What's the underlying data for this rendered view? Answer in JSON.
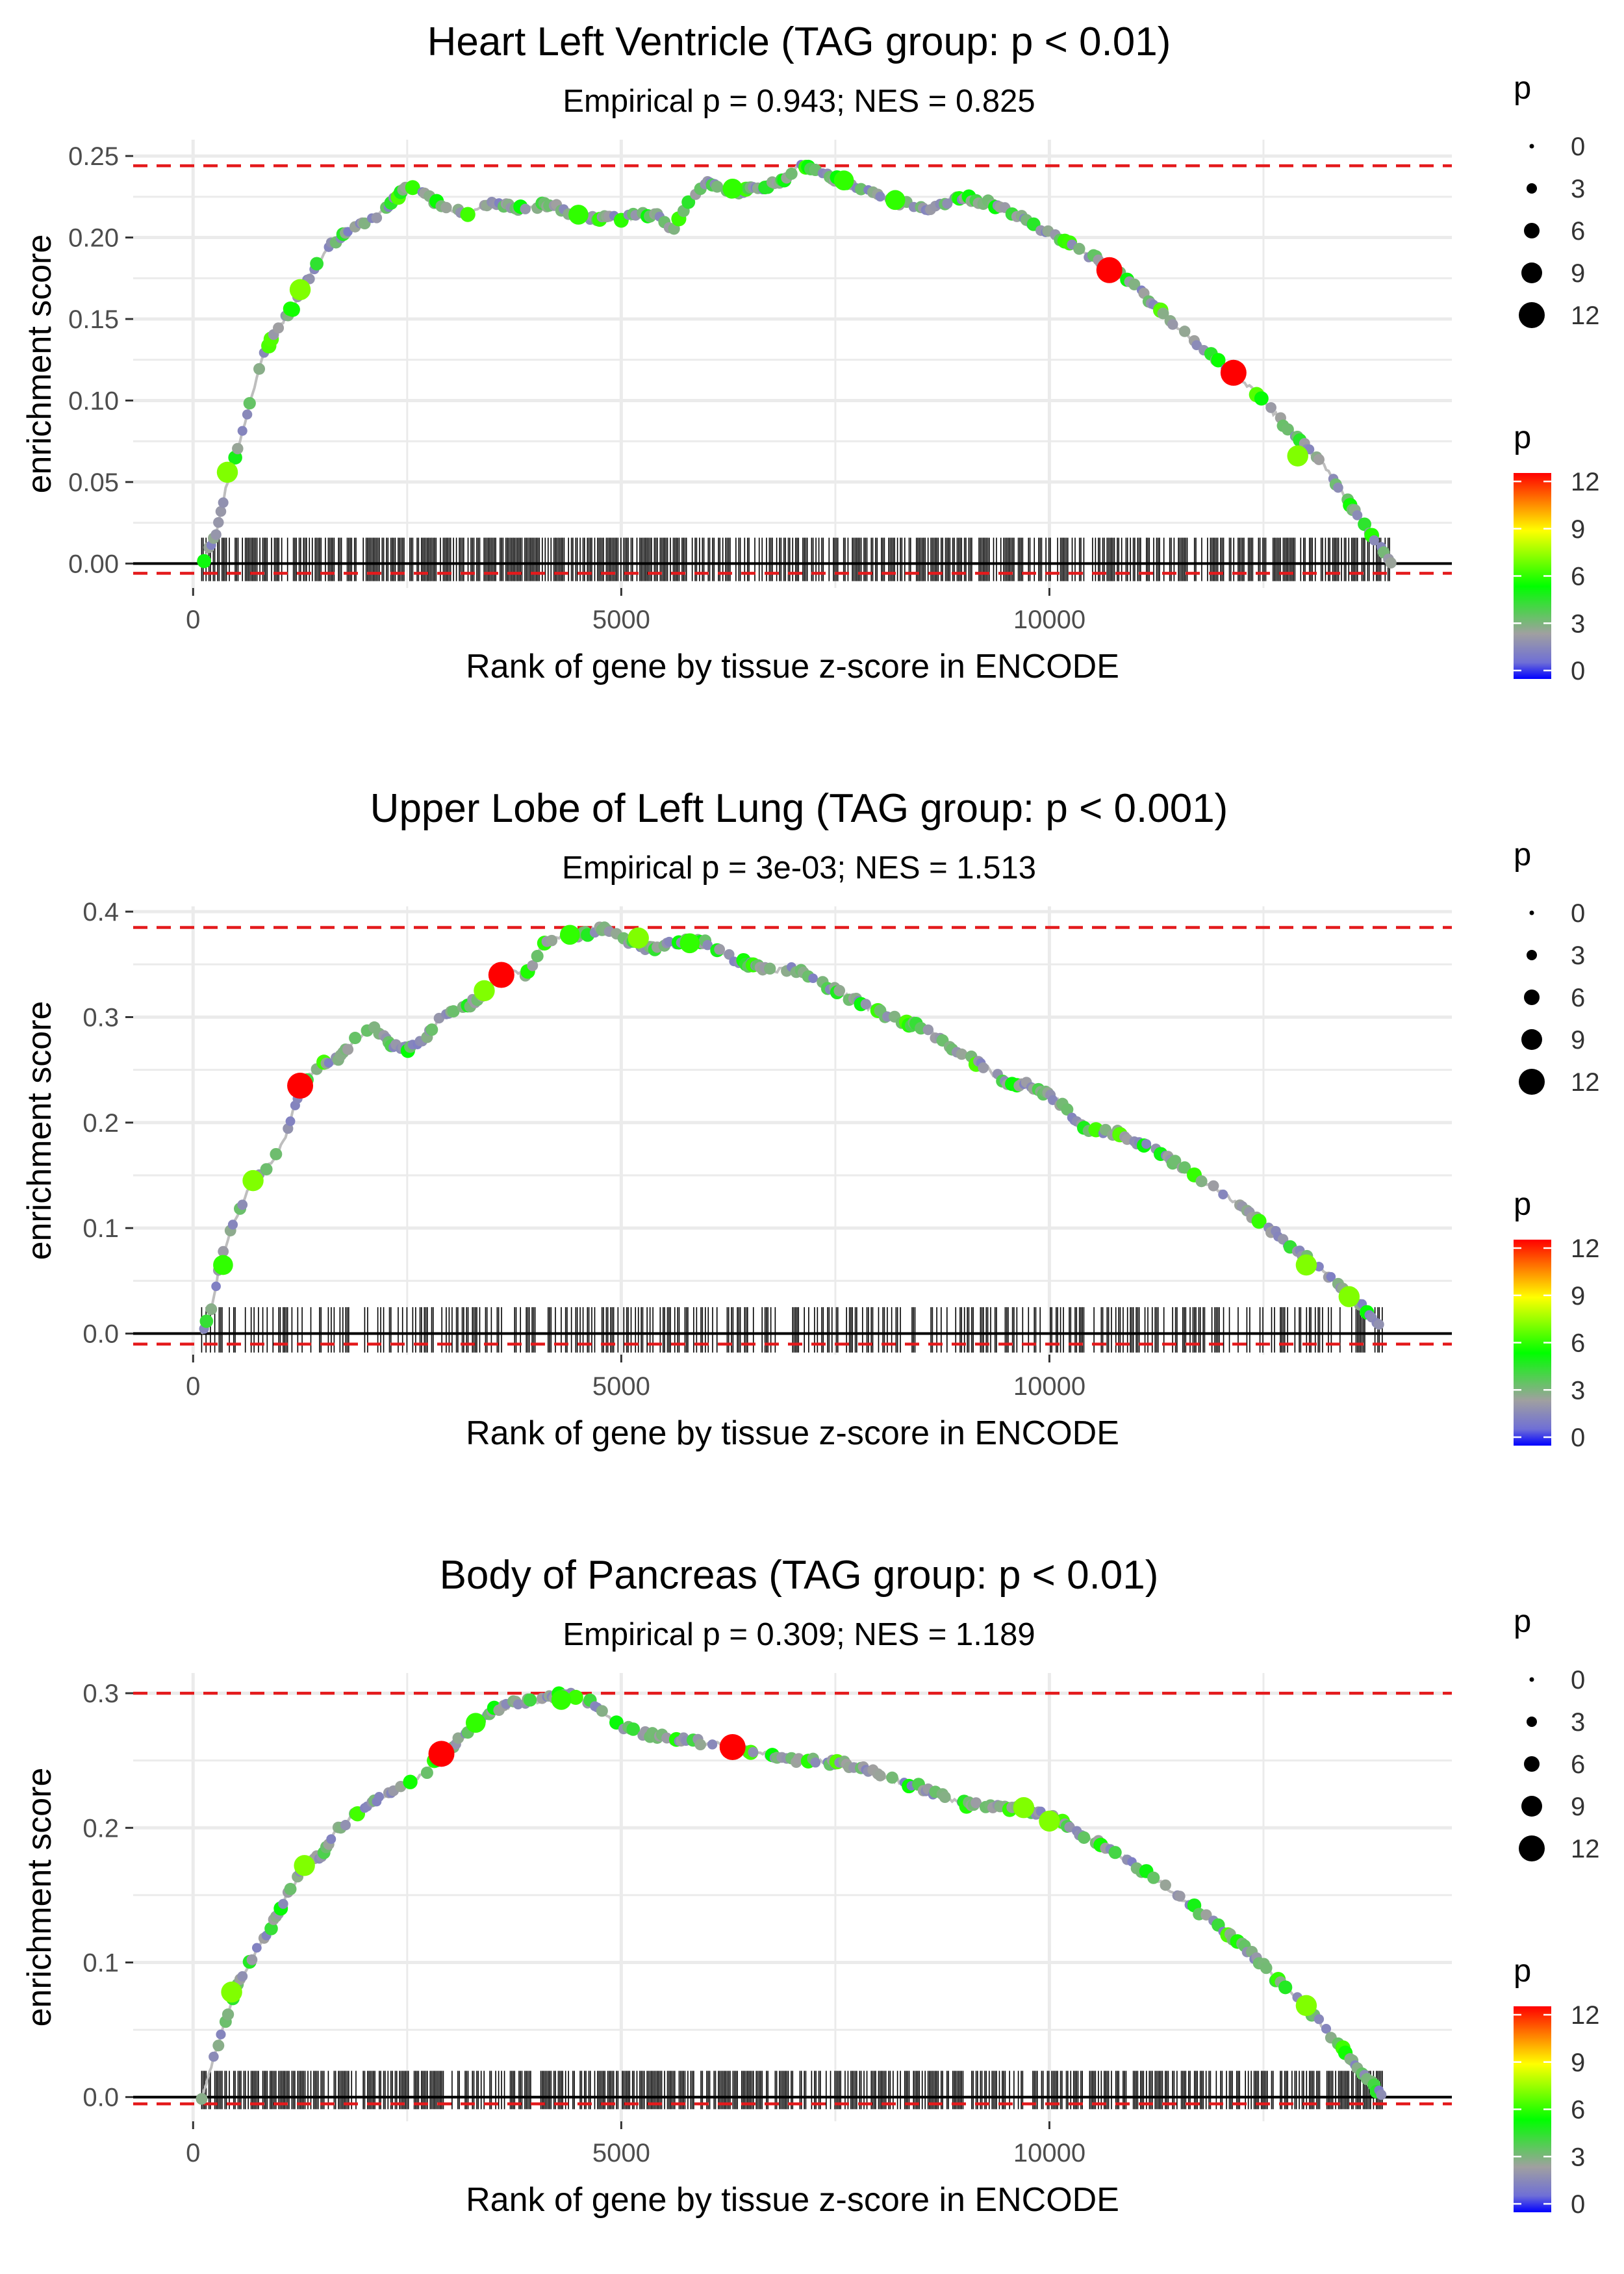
{
  "colors": {
    "line": "#bebebe",
    "hline": "#e41a1c",
    "axis_line": "#000000",
    "rug": "#000000",
    "grid": "#ebebeb",
    "scale": [
      "#0000ff",
      "#a0a0a0",
      "#00ff00",
      "#ffff00",
      "#ff0000"
    ]
  },
  "legend": {
    "size_title": "p",
    "size_labels": [
      "0",
      "3",
      "6",
      "9",
      "12"
    ],
    "color_title": "p",
    "color_labels": [
      "0",
      "3",
      "6",
      "9",
      "12"
    ]
  },
  "chart_data": [
    {
      "type": "line",
      "title": "Heart Left Ventricle (TAG group: p < 0.01)",
      "subtitle": "Empirical p = 0.943; NES = 0.825",
      "xlabel": "Rank of gene by tissue z-score in ENCODE",
      "ylabel": "enrichment score",
      "xlim": [
        -700,
        14700
      ],
      "ylim": [
        -0.015,
        0.26
      ],
      "xticks": [
        0,
        5000,
        10000
      ],
      "xtick_labels": [
        "0",
        "5000",
        "10000"
      ],
      "yticks": [
        0,
        0.05,
        0.1,
        0.15,
        0.2,
        0.25
      ],
      "ytick_labels": [
        "0.00",
        "0.05",
        "0.10",
        "0.15",
        "0.20",
        "0.25"
      ],
      "max_es": 0.244,
      "min_es": -0.006,
      "rug_range": [
        100,
        14000
      ],
      "rug_density": 0.62,
      "seed": 11,
      "curve": [
        [
          100,
          0
        ],
        [
          250,
          0.015
        ],
        [
          400,
          0.05
        ],
        [
          600,
          0.085
        ],
        [
          800,
          0.125
        ],
        [
          1000,
          0.145
        ],
        [
          1200,
          0.16
        ],
        [
          1400,
          0.18
        ],
        [
          1600,
          0.195
        ],
        [
          1800,
          0.205
        ],
        [
          2000,
          0.208
        ],
        [
          2200,
          0.215
        ],
        [
          2500,
          0.232
        ],
        [
          2700,
          0.228
        ],
        [
          2900,
          0.218
        ],
        [
          3200,
          0.215
        ],
        [
          3500,
          0.222
        ],
        [
          3800,
          0.218
        ],
        [
          4200,
          0.22
        ],
        [
          4500,
          0.212
        ],
        [
          5000,
          0.212
        ],
        [
          5400,
          0.215
        ],
        [
          5600,
          0.205
        ],
        [
          5800,
          0.222
        ],
        [
          6000,
          0.233
        ],
        [
          6300,
          0.228
        ],
        [
          6600,
          0.23
        ],
        [
          6900,
          0.235
        ],
        [
          7100,
          0.245
        ],
        [
          7400,
          0.238
        ],
        [
          7800,
          0.23
        ],
        [
          8200,
          0.222
        ],
        [
          8600,
          0.218
        ],
        [
          9000,
          0.225
        ],
        [
          9500,
          0.218
        ],
        [
          9800,
          0.208
        ],
        [
          10200,
          0.197
        ],
        [
          10500,
          0.188
        ],
        [
          10800,
          0.18
        ],
        [
          11200,
          0.16
        ],
        [
          11600,
          0.14
        ],
        [
          12000,
          0.122
        ],
        [
          12400,
          0.105
        ],
        [
          12800,
          0.082
        ],
        [
          13200,
          0.06
        ],
        [
          13600,
          0.03
        ],
        [
          14000,
          0.0
        ]
      ],
      "highlights": [
        {
          "x": 10700,
          "y": 0.18,
          "p": 12
        },
        {
          "x": 12150,
          "y": 0.117,
          "p": 12
        },
        {
          "x": 1250,
          "y": 0.168,
          "p": 7
        },
        {
          "x": 400,
          "y": 0.056,
          "p": 7
        },
        {
          "x": 12900,
          "y": 0.066,
          "p": 7
        },
        {
          "x": 7600,
          "y": 0.235,
          "p": 6
        },
        {
          "x": 4500,
          "y": 0.214,
          "p": 6
        },
        {
          "x": 6300,
          "y": 0.23,
          "p": 6
        },
        {
          "x": 8200,
          "y": 0.223,
          "p": 6
        }
      ]
    },
    {
      "type": "line",
      "title": "Upper Lobe of Left Lung (TAG group: p < 0.001)",
      "subtitle": "Empirical p = 3e-03; NES = 1.513",
      "xlabel": "Rank of gene by tissue z-score in ENCODE",
      "ylabel": "enrichment score",
      "xlim": [
        -700,
        14700
      ],
      "ylim": [
        -0.02,
        0.405
      ],
      "xticks": [
        0,
        5000,
        10000
      ],
      "xtick_labels": [
        "0",
        "5000",
        "10000"
      ],
      "yticks": [
        0,
        0.1,
        0.2,
        0.3,
        0.4
      ],
      "ytick_labels": [
        "0.0",
        "0.1",
        "0.2",
        "0.3",
        "0.4"
      ],
      "max_es": 0.385,
      "min_es": -0.01,
      "rug_range": [
        100,
        13900
      ],
      "rug_density": 0.4,
      "seed": 23,
      "curve": [
        [
          100,
          0
        ],
        [
          200,
          0.02
        ],
        [
          300,
          0.06
        ],
        [
          400,
          0.09
        ],
        [
          550,
          0.12
        ],
        [
          700,
          0.145
        ],
        [
          900,
          0.16
        ],
        [
          1050,
          0.18
        ],
        [
          1200,
          0.22
        ],
        [
          1350,
          0.245
        ],
        [
          1500,
          0.255
        ],
        [
          1700,
          0.26
        ],
        [
          1900,
          0.28
        ],
        [
          2100,
          0.29
        ],
        [
          2300,
          0.275
        ],
        [
          2500,
          0.27
        ],
        [
          2700,
          0.28
        ],
        [
          2900,
          0.3
        ],
        [
          3200,
          0.31
        ],
        [
          3500,
          0.33
        ],
        [
          3700,
          0.345
        ],
        [
          3900,
          0.34
        ],
        [
          4100,
          0.37
        ],
        [
          4300,
          0.375
        ],
        [
          4600,
          0.38
        ],
        [
          4800,
          0.385
        ],
        [
          5000,
          0.375
        ],
        [
          5300,
          0.365
        ],
        [
          5700,
          0.372
        ],
        [
          6000,
          0.37
        ],
        [
          6300,
          0.355
        ],
        [
          6700,
          0.345
        ],
        [
          7100,
          0.345
        ],
        [
          7500,
          0.325
        ],
        [
          8000,
          0.305
        ],
        [
          8500,
          0.29
        ],
        [
          8800,
          0.275
        ],
        [
          9200,
          0.255
        ],
        [
          9500,
          0.238
        ],
        [
          9800,
          0.235
        ],
        [
          10100,
          0.22
        ],
        [
          10400,
          0.195
        ],
        [
          10800,
          0.19
        ],
        [
          11200,
          0.175
        ],
        [
          11600,
          0.155
        ],
        [
          12000,
          0.135
        ],
        [
          12400,
          0.11
        ],
        [
          12800,
          0.085
        ],
        [
          13200,
          0.06
        ],
        [
          13600,
          0.03
        ],
        [
          13900,
          0.005
        ]
      ],
      "highlights": [
        {
          "x": 1250,
          "y": 0.235,
          "p": 12
        },
        {
          "x": 3600,
          "y": 0.34,
          "p": 12
        },
        {
          "x": 700,
          "y": 0.145,
          "p": 7
        },
        {
          "x": 350,
          "y": 0.065,
          "p": 6
        },
        {
          "x": 3400,
          "y": 0.325,
          "p": 7
        },
        {
          "x": 4400,
          "y": 0.378,
          "p": 6
        },
        {
          "x": 5200,
          "y": 0.375,
          "p": 7
        },
        {
          "x": 5800,
          "y": 0.37,
          "p": 6
        },
        {
          "x": 13000,
          "y": 0.065,
          "p": 7
        },
        {
          "x": 13500,
          "y": 0.035,
          "p": 7
        }
      ]
    },
    {
      "type": "line",
      "title": "Body of Pancreas (TAG group: p < 0.01)",
      "subtitle": "Empirical p = 0.309; NES = 1.189",
      "xlabel": "Rank of gene by tissue z-score in ENCODE",
      "ylabel": "enrichment score",
      "xlim": [
        -700,
        14700
      ],
      "ylim": [
        -0.018,
        0.315
      ],
      "xticks": [
        0,
        5000,
        10000
      ],
      "xtick_labels": [
        "0",
        "5000",
        "10000"
      ],
      "yticks": [
        0,
        0.1,
        0.2,
        0.3
      ],
      "ytick_labels": [
        "0.0",
        "0.1",
        "0.2",
        "0.3"
      ],
      "max_es": 0.3,
      "min_es": -0.005,
      "rug_range": [
        100,
        13900
      ],
      "rug_density": 0.62,
      "seed": 37,
      "curve": [
        [
          100,
          0
        ],
        [
          200,
          0.02
        ],
        [
          350,
          0.05
        ],
        [
          500,
          0.08
        ],
        [
          700,
          0.105
        ],
        [
          900,
          0.125
        ],
        [
          1100,
          0.15
        ],
        [
          1300,
          0.172
        ],
        [
          1500,
          0.18
        ],
        [
          1700,
          0.2
        ],
        [
          1900,
          0.21
        ],
        [
          2100,
          0.22
        ],
        [
          2300,
          0.225
        ],
        [
          2500,
          0.235
        ],
        [
          2700,
          0.24
        ],
        [
          2900,
          0.255
        ],
        [
          3100,
          0.265
        ],
        [
          3300,
          0.278
        ],
        [
          3500,
          0.288
        ],
        [
          3800,
          0.293
        ],
        [
          4100,
          0.295
        ],
        [
          4400,
          0.3
        ],
        [
          4700,
          0.292
        ],
        [
          5000,
          0.275
        ],
        [
          5400,
          0.268
        ],
        [
          5800,
          0.265
        ],
        [
          6300,
          0.26
        ],
        [
          6700,
          0.255
        ],
        [
          7100,
          0.25
        ],
        [
          7600,
          0.248
        ],
        [
          8000,
          0.24
        ],
        [
          8500,
          0.23
        ],
        [
          9000,
          0.218
        ],
        [
          9500,
          0.215
        ],
        [
          10000,
          0.21
        ],
        [
          10300,
          0.198
        ],
        [
          10700,
          0.185
        ],
        [
          11100,
          0.168
        ],
        [
          11500,
          0.15
        ],
        [
          11900,
          0.13
        ],
        [
          12300,
          0.11
        ],
        [
          12700,
          0.085
        ],
        [
          13100,
          0.06
        ],
        [
          13500,
          0.03
        ],
        [
          13900,
          0.0
        ]
      ],
      "highlights": [
        {
          "x": 2900,
          "y": 0.255,
          "p": 12
        },
        {
          "x": 6300,
          "y": 0.26,
          "p": 12
        },
        {
          "x": 1300,
          "y": 0.172,
          "p": 7
        },
        {
          "x": 450,
          "y": 0.078,
          "p": 7
        },
        {
          "x": 3300,
          "y": 0.278,
          "p": 6
        },
        {
          "x": 4300,
          "y": 0.295,
          "p": 6
        },
        {
          "x": 9700,
          "y": 0.215,
          "p": 7
        },
        {
          "x": 10000,
          "y": 0.205,
          "p": 7
        },
        {
          "x": 13000,
          "y": 0.068,
          "p": 7
        }
      ]
    }
  ]
}
